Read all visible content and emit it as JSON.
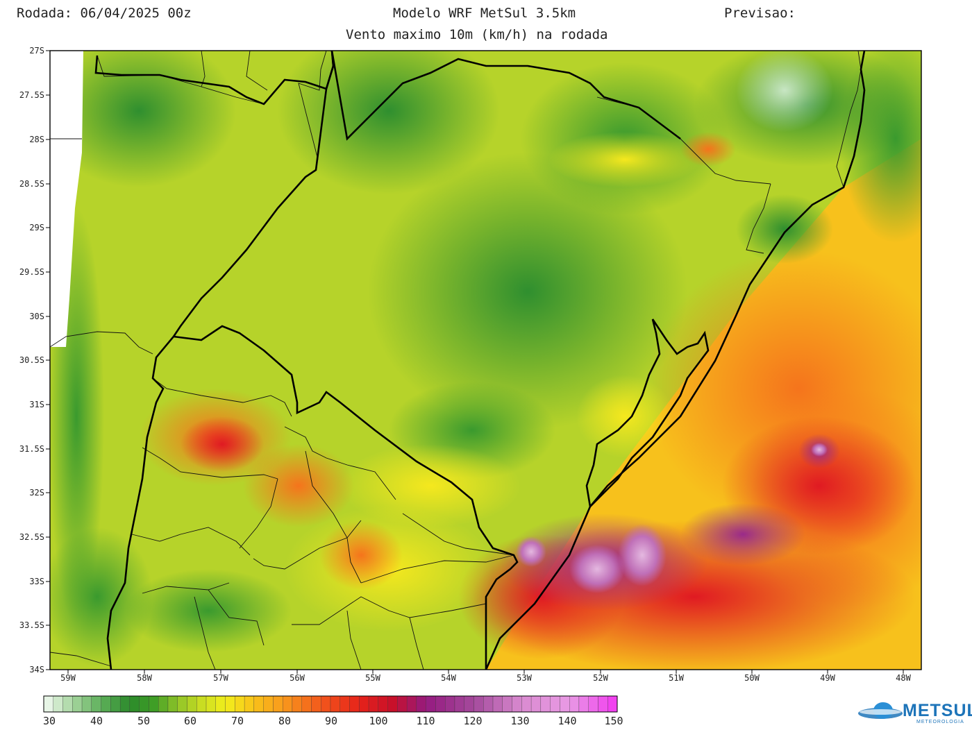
{
  "header": {
    "run": "Rodada: 06/04/2025 00z",
    "model": "Modelo WRF MetSul 3.5km",
    "forecast": "Previsao:",
    "subtitle": "Vento maximo 10m (km/h) na rodada"
  },
  "map": {
    "latitudes": [
      "27S",
      "27.5S",
      "28S",
      "28.5S",
      "29S",
      "29.5S",
      "30S",
      "30.5S",
      "31S",
      "31.5S",
      "32S",
      "32.5S",
      "33S",
      "33.5S",
      "34S"
    ],
    "longitudes": [
      "59W",
      "58W",
      "57W",
      "56W",
      "55W",
      "54W",
      "53W",
      "52W",
      "51W",
      "50W",
      "49W",
      "48W"
    ]
  },
  "colorbar": {
    "min": 30,
    "max": 150,
    "unit": "km/h",
    "labels": [
      "30",
      "40",
      "50",
      "60",
      "70",
      "80",
      "90",
      "100",
      "110",
      "120",
      "130",
      "140",
      "150"
    ],
    "stops": [
      {
        "v": 30,
        "c": "#f4fbf4"
      },
      {
        "v": 36,
        "c": "#a7d6a0"
      },
      {
        "v": 42,
        "c": "#5eb05a"
      },
      {
        "v": 48,
        "c": "#2b8a2b"
      },
      {
        "v": 53,
        "c": "#3f9e26"
      },
      {
        "v": 58,
        "c": "#8fc428"
      },
      {
        "v": 63,
        "c": "#c9dd22"
      },
      {
        "v": 68,
        "c": "#f2ee1c"
      },
      {
        "v": 74,
        "c": "#f9c21a"
      },
      {
        "v": 80,
        "c": "#f99a1c"
      },
      {
        "v": 88,
        "c": "#f2581c"
      },
      {
        "v": 96,
        "c": "#e6231a"
      },
      {
        "v": 103,
        "c": "#c8102a"
      },
      {
        "v": 110,
        "c": "#951a80"
      },
      {
        "v": 120,
        "c": "#a44a9c"
      },
      {
        "v": 130,
        "c": "#d98ad0"
      },
      {
        "v": 140,
        "c": "#e89ae4"
      },
      {
        "v": 150,
        "c": "#f238f0"
      }
    ]
  },
  "logo": {
    "name": "METSUL",
    "tagline": "METEOROLOGIA"
  }
}
